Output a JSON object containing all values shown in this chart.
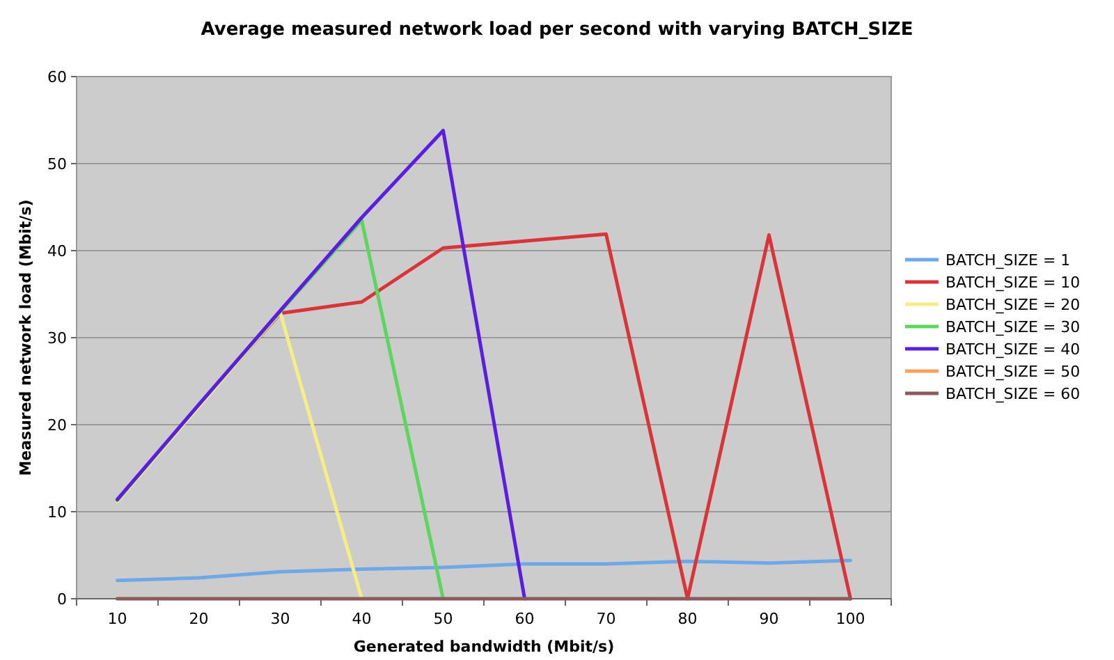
{
  "chart_data": {
    "type": "line",
    "title": "Average measured network load per second with varying BATCH_SIZE",
    "xlabel": "Generated bandwidth (Mbit/s)",
    "ylabel": "Measured network load (Mbit/s)",
    "categories": [
      "10",
      "20",
      "30",
      "40",
      "50",
      "60",
      "70",
      "80",
      "90",
      "100"
    ],
    "ylim": [
      0,
      60
    ],
    "yticks": [
      0,
      10,
      20,
      30,
      40,
      50,
      60
    ],
    "grid": "y",
    "legend": "right",
    "marker": "none",
    "line_style": "solid",
    "series": [
      {
        "name": "BATCH_SIZE = 1",
        "color": "#6fa8e8",
        "values": [
          2.1,
          2.4,
          3.1,
          3.4,
          3.6,
          4.0,
          4.0,
          4.3,
          4.1,
          4.4
        ]
      },
      {
        "name": "BATCH_SIZE = 10",
        "color": "#d9343a",
        "values": [
          11.3,
          22.2,
          32.8,
          34.1,
          40.3,
          41.1,
          41.9,
          0,
          41.8,
          0
        ]
      },
      {
        "name": "BATCH_SIZE = 20",
        "color": "#f5ee86",
        "values": [
          11.2,
          22.1,
          32.9,
          0,
          null,
          null,
          null,
          null,
          null,
          null
        ]
      },
      {
        "name": "BATCH_SIZE = 30",
        "color": "#5cd65c",
        "values": [
          11.3,
          22.3,
          33.0,
          43.5,
          0,
          null,
          null,
          null,
          null,
          null
        ]
      },
      {
        "name": "BATCH_SIZE = 40",
        "color": "#5b1ee0",
        "values": [
          11.4,
          22.3,
          33.1,
          43.8,
          53.8,
          0,
          null,
          null,
          null,
          null
        ]
      },
      {
        "name": "BATCH_SIZE = 50",
        "color": "#f5a35a",
        "values": [
          null,
          null,
          null,
          null,
          null,
          null,
          null,
          null,
          null,
          null
        ]
      },
      {
        "name": "BATCH_SIZE = 60",
        "color": "#8b5a5a",
        "values": [
          0,
          0,
          0,
          0,
          0,
          0,
          0,
          0,
          0,
          0
        ]
      }
    ]
  }
}
